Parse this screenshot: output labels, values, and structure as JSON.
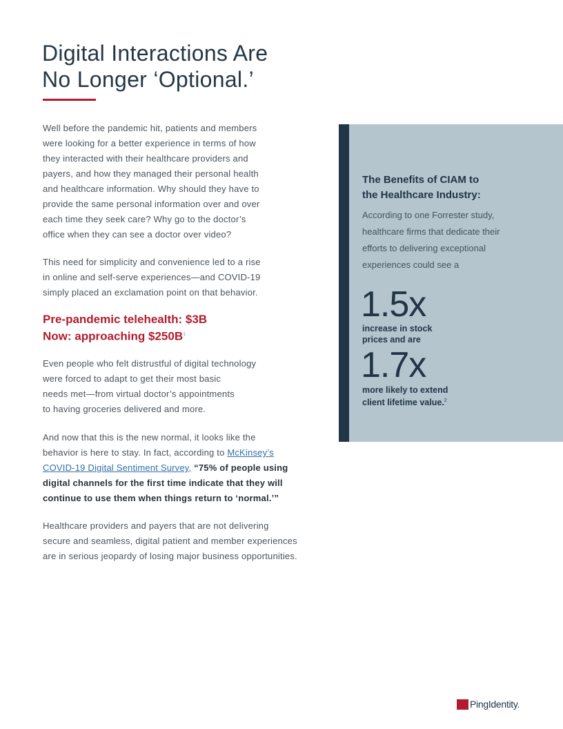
{
  "title": [
    "Digital Interactions Are",
    "No Longer ‘Optional.’"
  ],
  "paragraphs": [
    {
      "lines": [
        [
          {
            "t": "Well before the pandemic hit, patients and members"
          }
        ],
        [
          {
            "t": "were looking for a better experience in terms of how"
          }
        ],
        [
          {
            "t": "they interacted with their healthcare providers and"
          }
        ],
        [
          {
            "t": "payers, and how they managed their personal health"
          }
        ],
        [
          {
            "t": "and healthcare information. Why should they have to"
          }
        ],
        [
          {
            "t": "provide the same personal information over and over"
          }
        ],
        [
          {
            "t": "each time they seek care? Why go to the doctor’s"
          }
        ],
        [
          {
            "t": "office when they can see a doctor over video?"
          }
        ]
      ]
    },
    {
      "lines": [
        [
          {
            "t": "This need for simplicity and convenience led to a rise"
          }
        ],
        [
          {
            "t": "in online and self-serve experiences—and COVID-19"
          }
        ],
        [
          {
            "t": "simply placed an exclamation point on that behavior."
          }
        ]
      ]
    },
    {
      "lines": [
        [
          {
            "t": "Even people who felt distrustful of digital technology"
          }
        ],
        [
          {
            "t": "were forced to adapt to get their most basic"
          }
        ],
        [
          {
            "t": "needs met—from virtual doctor’s appointments"
          }
        ],
        [
          {
            "t": "to having groceries delivered and more."
          }
        ]
      ]
    },
    {
      "lines": [
        [
          {
            "t": "And now that this is the new normal, it looks like the"
          }
        ],
        [
          {
            "t": "behavior is here to stay. In fact, according to "
          },
          {
            "t": "McKinsey’s ",
            "s": "link"
          }
        ],
        [
          {
            "t": "COVID-19 Digital Sentiment Survey,",
            "s": "link"
          },
          {
            "t": "  “75% of people using",
            "s": "bold"
          }
        ],
        [
          {
            "t": "digital channels for the first time indicate that they will",
            "s": "bold"
          }
        ],
        [
          {
            "t": "continue to use them when things return to ‘normal.’”",
            "s": "bold"
          }
        ]
      ]
    },
    {
      "lines": [
        [
          {
            "t": "Healthcare providers and payers that are not delivering"
          }
        ],
        [
          {
            "t": "secure and seamless, digital patient and member experiences"
          }
        ],
        [
          {
            "t": "are in serious jeopardy of losing major business opportunities."
          }
        ]
      ]
    }
  ],
  "highlight": {
    "line1": "Pre-pandemic telehealth: $3B",
    "line2": "Now: approaching $250B",
    "footnote": "1"
  },
  "sidebar": {
    "heading": [
      "The Benefits of CIAM to",
      "the Healthcare Industry:"
    ],
    "body": [
      "According to one Forrester study,",
      "healthcare firms that dedicate their",
      "efforts to delivering exceptional",
      "experiences could see a"
    ],
    "stat1": {
      "value": "1.5x",
      "label": [
        "increase in stock",
        "prices and are"
      ]
    },
    "stat2": {
      "value": "1.7x",
      "label": [
        "more likely to extend",
        "client lifetime value."
      ],
      "footnote": "2"
    }
  },
  "logo": {
    "text": "PingIdentity."
  },
  "colors": {
    "accent_red": "#b01c2e",
    "navy": "#223546",
    "box_bg": "#b4c5cd",
    "link": "#2f6ea8"
  }
}
